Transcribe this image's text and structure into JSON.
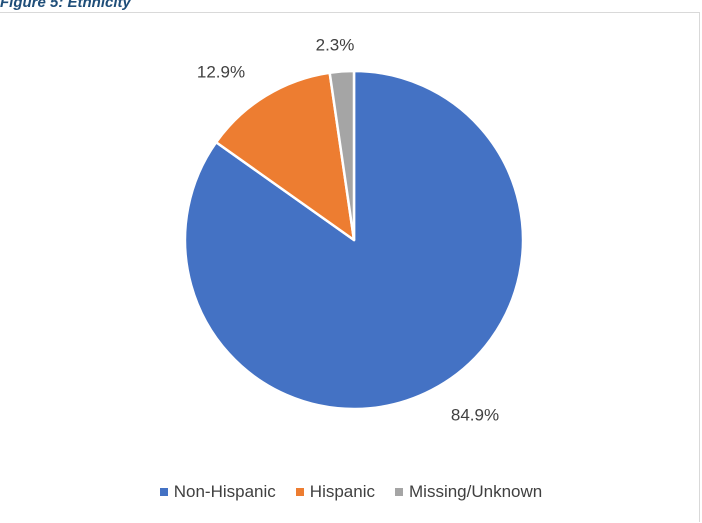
{
  "page": {
    "title": "Figure 5: Ethnicity"
  },
  "colors": {
    "non_hispanic": "#4472c4",
    "hispanic": "#ed7d31",
    "missing": "#a5a5a5",
    "label_text": "#404040"
  },
  "chart_data": {
    "type": "pie",
    "title": "",
    "slices": [
      {
        "name": "Non-Hispanic",
        "value": 84.9,
        "label": "84.9%",
        "color": "#4472c4"
      },
      {
        "name": "Hispanic",
        "value": 12.9,
        "label": "12.9%",
        "color": "#ed7d31"
      },
      {
        "name": "Missing/Unknown",
        "value": 2.3,
        "label": "2.3%",
        "color": "#a5a5a5"
      }
    ],
    "start_angle": "12 o'clock",
    "direction": "clockwise",
    "legend_position": "bottom"
  },
  "legend": {
    "items": [
      {
        "label": "Non-Hispanic",
        "color": "#4472c4"
      },
      {
        "label": "Hispanic",
        "color": "#ed7d31"
      },
      {
        "label": "Missing/Unknown",
        "color": "#a5a5a5"
      }
    ]
  }
}
